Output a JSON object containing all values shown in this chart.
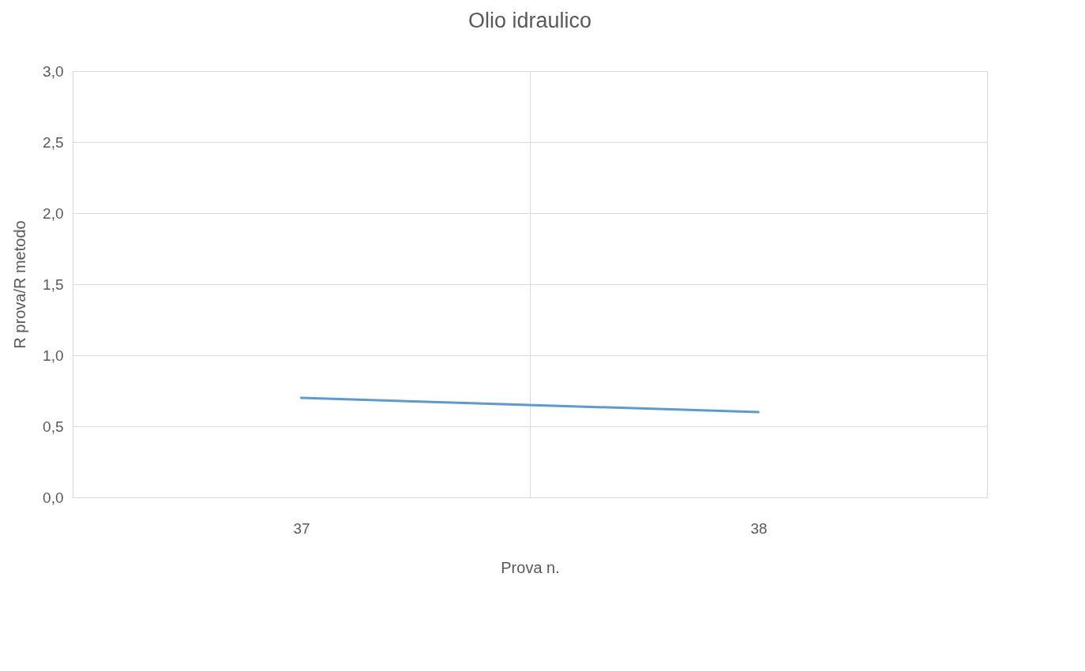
{
  "chart_data": {
    "type": "line",
    "title": "Olio idraulico",
    "xlabel": "Prova n.",
    "ylabel": "R prova/R metodo",
    "categories": [
      "37",
      "38"
    ],
    "series": [
      {
        "color": "#5b9bd5",
        "values": [
          0.7,
          0.6
        ]
      }
    ],
    "ylim": [
      0,
      3
    ],
    "yticks": [
      {
        "value": 0,
        "label": "0,0"
      },
      {
        "value": 0.5,
        "label": "0,5"
      },
      {
        "value": 1,
        "label": "1,0"
      },
      {
        "value": 1.5,
        "label": "1,5"
      },
      {
        "value": 2,
        "label": "2,0"
      },
      {
        "value": 2.5,
        "label": "2,5"
      },
      {
        "value": 3,
        "label": "3,0"
      }
    ],
    "grid": true
  }
}
